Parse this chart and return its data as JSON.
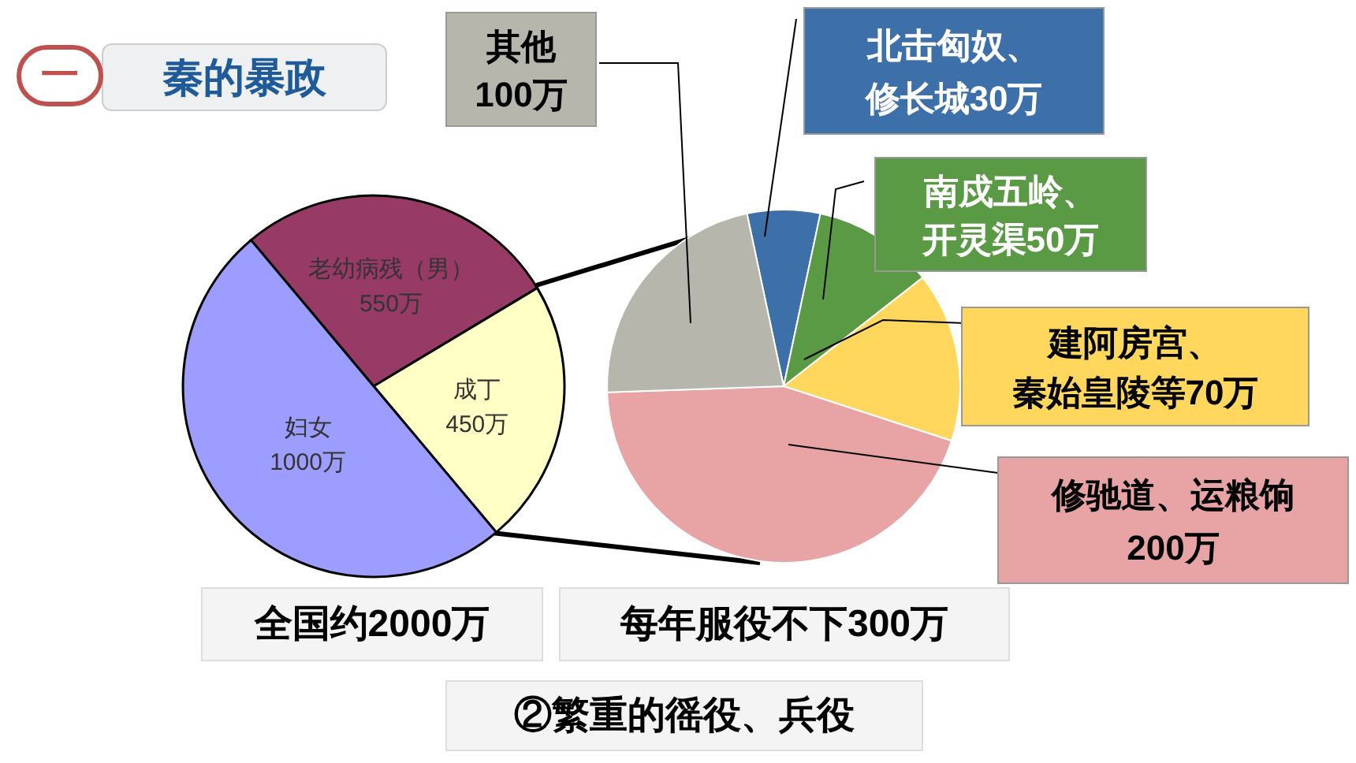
{
  "chart_data": [
    {
      "type": "pie",
      "title": "秦的暴政",
      "categories": [
        "老幼病残（男）",
        "成丁",
        "妇女"
      ],
      "values": [
        550,
        450,
        1000
      ],
      "value_labels": [
        "550万",
        "450万",
        "1000万"
      ],
      "colors": [
        "#973a66",
        "#ffffc6",
        "#9d9cff"
      ],
      "annotations": [
        "一",
        "全国约2000万"
      ]
    },
    {
      "type": "pie",
      "categories": [
        "北击匈奴、修长城",
        "南戍五岭、开灵渠",
        "建阿房宫、秦始皇陵等",
        "修驰道、运粮饷",
        "其他"
      ],
      "values": [
        30,
        50,
        70,
        200,
        100
      ],
      "value_labels": [
        "30万",
        "50万",
        "70万",
        "200万",
        "100万"
      ],
      "colors": [
        "#3d6fa8",
        "#5b9a45",
        "#ffd75c",
        "#e8a4a4",
        "#b6b6ad"
      ],
      "annotations": [
        "每年服役不下300万",
        "②繁重的徭役、兵役"
      ]
    }
  ]
}
